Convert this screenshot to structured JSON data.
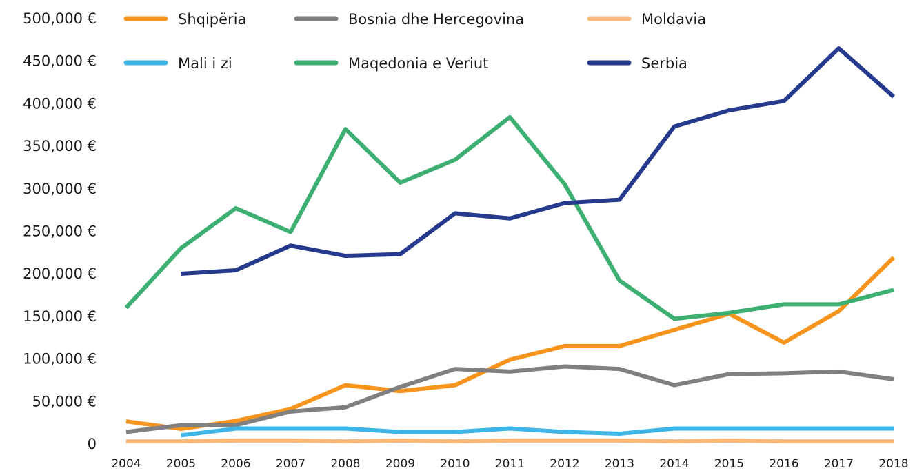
{
  "chart_data": {
    "type": "line",
    "x": [
      2004,
      2005,
      2006,
      2007,
      2008,
      2009,
      2010,
      2011,
      2012,
      2013,
      2014,
      2015,
      2016,
      2017,
      2018
    ],
    "xlim": [
      2004,
      2018
    ],
    "ylim": [
      0,
      500000
    ],
    "yticks": [
      0,
      {
        "value": 50000,
        "label": "50,000 €"
      },
      {
        "value": 100000,
        "label": "100,000 €"
      },
      {
        "value": 150000,
        "label": "150,000 €"
      },
      {
        "value": 200000,
        "label": "200,000 €"
      },
      {
        "value": 250000,
        "label": "250,000 €"
      },
      {
        "value": 300000,
        "label": "300,000 €"
      },
      {
        "value": 350000,
        "label": "350,000 €"
      },
      {
        "value": 400000,
        "label": "400,000 €"
      },
      {
        "value": 450000,
        "label": "450,000 €"
      },
      {
        "value": 500000,
        "label": "500,000 €"
      }
    ],
    "grid": false,
    "series": [
      {
        "name": "Shqipëria",
        "color": "#f7941d",
        "values": [
          27500,
          18600,
          28000,
          42000,
          70000,
          63000,
          70000,
          100000,
          116000,
          116000,
          135000,
          154000,
          120000,
          157000,
          220000
        ]
      },
      {
        "name": "Bosnia dhe Hercegovina",
        "color": "#808080",
        "values": [
          15000,
          23000,
          23000,
          39000,
          44000,
          68000,
          89000,
          86000,
          92000,
          89000,
          70000,
          83000,
          84000,
          86000,
          77000
        ]
      },
      {
        "name": "Moldavia",
        "color": "#f9b97a",
        "values": [
          4000,
          4000,
          5000,
          5000,
          4000,
          5000,
          4000,
          5000,
          5000,
          5000,
          4000,
          5000,
          4000,
          4000,
          4000
        ]
      },
      {
        "name": "Mali i zi",
        "color": "#3db5e6",
        "values": [
          null,
          11000,
          19000,
          19000,
          19000,
          15000,
          15000,
          19000,
          15000,
          13000,
          19000,
          19000,
          19000,
          19000,
          19000
        ]
      },
      {
        "name": "Maqedonia e Veriut",
        "color": "#3daf72",
        "values": [
          161000,
          231000,
          278000,
          250000,
          371000,
          308000,
          335000,
          385000,
          306000,
          193000,
          148000,
          155000,
          165000,
          165000,
          182000
        ]
      },
      {
        "name": "Serbia",
        "color": "#253a8c",
        "values": [
          null,
          201000,
          205000,
          234000,
          222000,
          224000,
          272000,
          266000,
          284000,
          288000,
          374000,
          393000,
          404000,
          466000,
          409000
        ]
      }
    ]
  }
}
